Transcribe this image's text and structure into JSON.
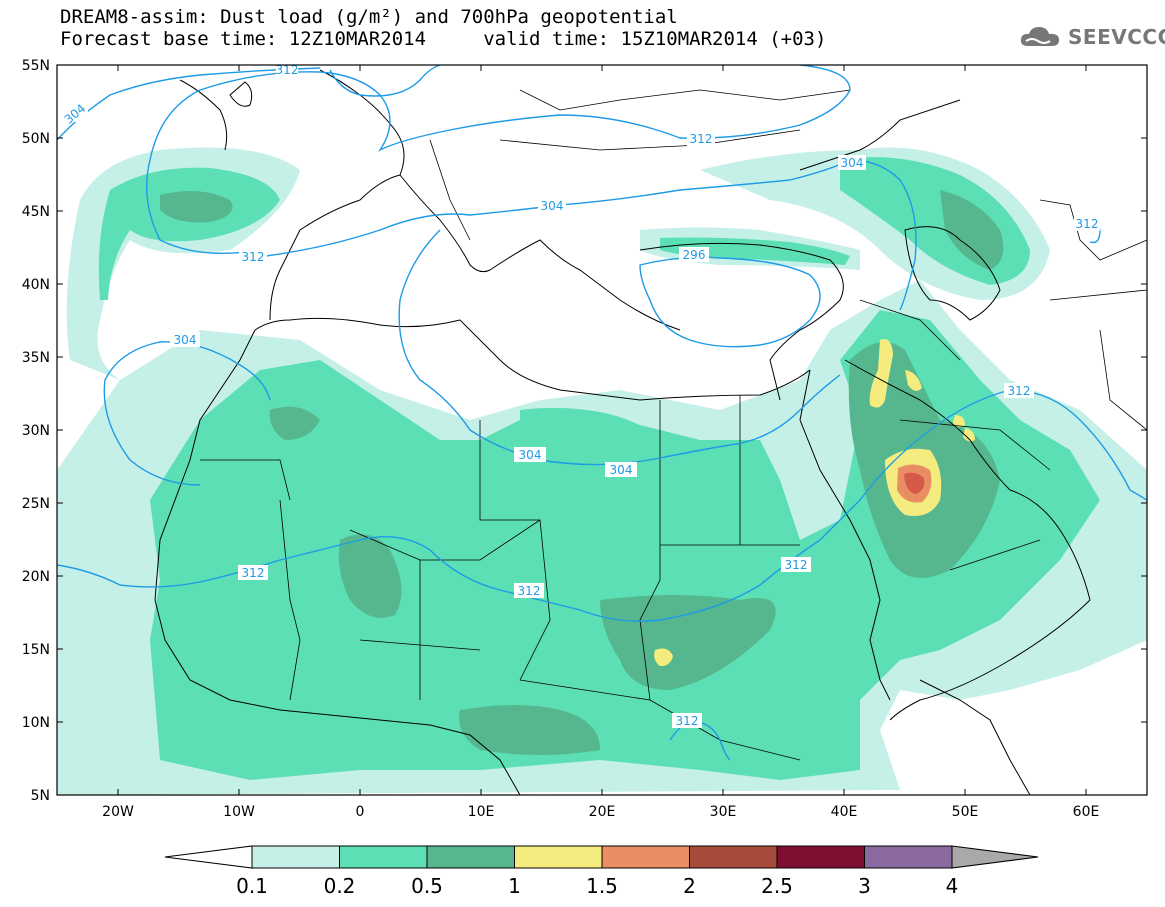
{
  "header": {
    "title_line1": "DREAM8-assim: Dust load (g/m²) and 700hPa geopotential",
    "title_line2": "Forecast base time: 12Z10MAR2014     valid time: 15Z10MAR2014 (+03)"
  },
  "logo": {
    "text": "SEEVCCC",
    "icon": "cloud-logo-icon"
  },
  "axes": {
    "lat_ticks": [
      "55N",
      "50N",
      "45N",
      "40N",
      "35N",
      "30N",
      "25N",
      "20N",
      "15N",
      "10N",
      "5N"
    ],
    "lon_ticks": [
      "20W",
      "10W",
      "0",
      "10E",
      "20E",
      "30E",
      "40E",
      "50E",
      "60E"
    ]
  },
  "contour_labels": {
    "gp_304_west": "304",
    "gp_312_north": "312",
    "gp_312_top": "312",
    "gp_312_ne": "312",
    "gp_304_black": "304",
    "gp_304_caspian": "304",
    "gp_312_caspian": "312",
    "gp_304_adriatic": "304",
    "gp_296": "296",
    "gp_312_biscay": "312",
    "gp_304_atlantic": "304",
    "gp_312_gulf": "312",
    "gp_304_libya": "304",
    "gp_304_egypt": "304",
    "gp_312_redsea": "312",
    "gp_312_sahel_w": "312",
    "gp_312_sahel_c": "312",
    "gp_312_south": "312"
  },
  "colorbar": {
    "labels": [
      "0.1",
      "0.2",
      "0.5",
      "1",
      "1.5",
      "2",
      "2.5",
      "3",
      "4"
    ],
    "colors": [
      "#c5f0e8",
      "#5cdfb4",
      "#56b78e",
      "#f5ec80",
      "#e98e63",
      "#a64b3c",
      "#7f0f30",
      "#8b6aa2"
    ],
    "under_color": "#ffffff",
    "over_color": "#a9a9a9"
  },
  "colors": {
    "dust_light": "#c5f0e8",
    "dust_mid": "#5cdfb4",
    "dust_dark": "#56b78e",
    "dust_yellow": "#f5ec80",
    "dust_orange": "#e98e63",
    "dust_red": "#c9464f",
    "contour": "#1e9be6"
  }
}
